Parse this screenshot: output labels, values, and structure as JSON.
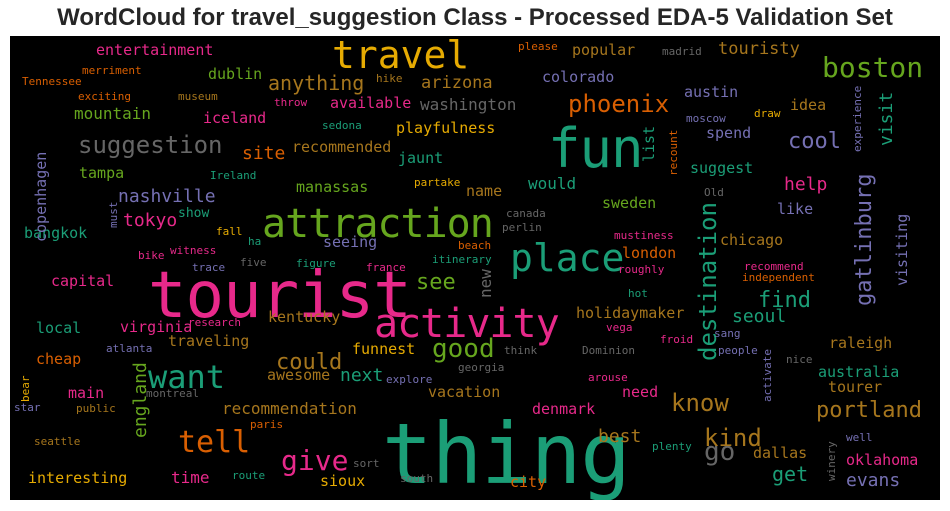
{
  "chart_data": {
    "type": "wordcloud",
    "title": "WordCloud for travel_suggestion Class - Processed EDA-5 Validation Set",
    "background": "#000000",
    "colormap": [
      "#1b9e77",
      "#d95f02",
      "#7570b3",
      "#e7298a",
      "#66a61e",
      "#e6ab02",
      "#a6761d",
      "#666666"
    ],
    "words": [
      {
        "text": "thing",
        "color": "#1b9e77",
        "weight": 1.0
      },
      {
        "text": "tourist",
        "color": "#e7298a",
        "weight": 0.92
      },
      {
        "text": "attraction",
        "color": "#66a61e",
        "weight": 0.72
      },
      {
        "text": "fun",
        "color": "#1b9e77",
        "weight": 0.78
      },
      {
        "text": "activity",
        "color": "#e7298a",
        "weight": 0.7
      },
      {
        "text": "place",
        "color": "#1b9e77",
        "weight": 0.6
      },
      {
        "text": "travel",
        "color": "#e6ab02",
        "weight": 0.6
      },
      {
        "text": "want",
        "color": "#1b9e77",
        "weight": 0.5
      },
      {
        "text": "tell",
        "color": "#d95f02",
        "weight": 0.45
      },
      {
        "text": "suggestion",
        "color": "#666666",
        "weight": 0.42
      },
      {
        "text": "boston",
        "color": "#66a61e",
        "weight": 0.42
      },
      {
        "text": "destination",
        "color": "#1b9e77",
        "weight": 0.4
      },
      {
        "text": "gatlinburg",
        "color": "#7570b3",
        "weight": 0.38
      },
      {
        "text": "give",
        "color": "#e7298a",
        "weight": 0.38
      },
      {
        "text": "good",
        "color": "#66a61e",
        "weight": 0.35
      },
      {
        "text": "phoenix",
        "color": "#d95f02",
        "weight": 0.34
      },
      {
        "text": "know",
        "color": "#a6761d",
        "weight": 0.33
      },
      {
        "text": "go",
        "color": "#666666",
        "weight": 0.33
      },
      {
        "text": "portland",
        "color": "#a6761d",
        "weight": 0.31
      },
      {
        "text": "see",
        "color": "#66a61e",
        "weight": 0.3
      },
      {
        "text": "find",
        "color": "#1b9e77",
        "weight": 0.29
      },
      {
        "text": "cool",
        "color": "#7570b3",
        "weight": 0.29
      },
      {
        "text": "kind",
        "color": "#a6761d",
        "weight": 0.28
      },
      {
        "text": "could",
        "color": "#a6761d",
        "weight": 0.28
      },
      {
        "text": "england",
        "color": "#66a61e",
        "weight": 0.27
      },
      {
        "text": "nashville",
        "color": "#7570b3",
        "weight": 0.27
      },
      {
        "text": "anything",
        "color": "#a6761d",
        "weight": 0.27
      },
      {
        "text": "get",
        "color": "#1b9e77",
        "weight": 0.26
      },
      {
        "text": "evans",
        "color": "#7570b3",
        "weight": 0.26
      },
      {
        "text": "tokyo",
        "color": "#e7298a",
        "weight": 0.25
      },
      {
        "text": "touristy",
        "color": "#a6761d",
        "weight": 0.25
      },
      {
        "text": "visit",
        "color": "#1b9e77",
        "weight": 0.24
      },
      {
        "text": "best",
        "color": "#a6761d",
        "weight": 0.24
      },
      {
        "text": "help",
        "color": "#e7298a",
        "weight": 0.24
      },
      {
        "text": "next",
        "color": "#1b9e77",
        "weight": 0.23
      },
      {
        "text": "seoul",
        "color": "#1b9e77",
        "weight": 0.23
      },
      {
        "text": "site",
        "color": "#d95f02",
        "weight": 0.23
      },
      {
        "text": "time",
        "color": "#e7298a",
        "weight": 0.22
      },
      {
        "text": "arizona",
        "color": "#a6761d",
        "weight": 0.22
      },
      {
        "text": "mountain",
        "color": "#66a61e",
        "weight": 0.22
      },
      {
        "text": "washington",
        "color": "#666666",
        "weight": 0.22
      },
      {
        "text": "new",
        "color": "#666666",
        "weight": 0.21
      },
      {
        "text": "recommendation",
        "color": "#a6761d",
        "weight": 0.21
      },
      {
        "text": "awesome",
        "color": "#a6761d",
        "weight": 0.21
      },
      {
        "text": "virginia",
        "color": "#e7298a",
        "weight": 0.21
      },
      {
        "text": "visiting",
        "color": "#7570b3",
        "weight": 0.21
      },
      {
        "text": "dallas",
        "color": "#a6761d",
        "weight": 0.2
      },
      {
        "text": "like",
        "color": "#7570b3",
        "weight": 0.2
      },
      {
        "text": "would",
        "color": "#1b9e77",
        "weight": 0.2
      },
      {
        "text": "sweden",
        "color": "#66a61e",
        "weight": 0.19
      },
      {
        "text": "austin",
        "color": "#7570b3",
        "weight": 0.19
      },
      {
        "text": "suggest",
        "color": "#1b9e77",
        "weight": 0.19
      },
      {
        "text": "main",
        "color": "#e7298a",
        "weight": 0.19
      },
      {
        "text": "raleigh",
        "color": "#a6761d",
        "weight": 0.19
      },
      {
        "text": "oklahoma",
        "color": "#e7298a",
        "weight": 0.19
      },
      {
        "text": "australia",
        "color": "#1b9e77",
        "weight": 0.19
      },
      {
        "text": "tourer",
        "color": "#a6761d",
        "weight": 0.19
      },
      {
        "text": "local",
        "color": "#1b9e77",
        "weight": 0.19
      },
      {
        "text": "london",
        "color": "#d95f02",
        "weight": 0.18
      },
      {
        "text": "chicago",
        "color": "#a6761d",
        "weight": 0.18
      },
      {
        "text": "dublin",
        "color": "#66a61e",
        "weight": 0.18
      },
      {
        "text": "iceland",
        "color": "#e7298a",
        "weight": 0.18
      },
      {
        "text": "colorado",
        "color": "#7570b3",
        "weight": 0.18
      },
      {
        "text": "popular",
        "color": "#a6761d",
        "weight": 0.18
      },
      {
        "text": "jaunt",
        "color": "#1b9e77",
        "weight": 0.18
      },
      {
        "text": "available",
        "color": "#e7298a",
        "weight": 0.18
      },
      {
        "text": "manassas",
        "color": "#66a61e",
        "weight": 0.18
      },
      {
        "text": "spend",
        "color": "#7570b3",
        "weight": 0.18
      },
      {
        "text": "idea",
        "color": "#a6761d",
        "weight": 0.18
      },
      {
        "text": "entertainment",
        "color": "#e7298a",
        "weight": 0.17
      },
      {
        "text": "playfulness",
        "color": "#e6ab02",
        "weight": 0.17
      },
      {
        "text": "recommended",
        "color": "#a6761d",
        "weight": 0.17
      },
      {
        "text": "seeing",
        "color": "#7570b3",
        "weight": 0.17
      },
      {
        "text": "funnest",
        "color": "#e6ab02",
        "weight": 0.17
      },
      {
        "text": "need",
        "color": "#e7298a",
        "weight": 0.17
      },
      {
        "text": "vacation",
        "color": "#a6761d",
        "weight": 0.17
      },
      {
        "text": "denmark",
        "color": "#e7298a",
        "weight": 0.17
      },
      {
        "text": "traveling",
        "color": "#a6761d",
        "weight": 0.17
      },
      {
        "text": "holidaymaker",
        "color": "#a6761d",
        "weight": 0.17
      },
      {
        "text": "interesting",
        "color": "#e6ab02",
        "weight": 0.17
      },
      {
        "text": "city",
        "color": "#d95f02",
        "weight": 0.17
      },
      {
        "text": "sioux",
        "color": "#e6ab02",
        "weight": 0.17
      },
      {
        "text": "kentucky",
        "color": "#a6761d",
        "weight": 0.16
      },
      {
        "text": "capital",
        "color": "#e7298a",
        "weight": 0.16
      },
      {
        "text": "cheap",
        "color": "#d95f02",
        "weight": 0.16
      },
      {
        "text": "tampa",
        "color": "#66a61e",
        "weight": 0.16
      },
      {
        "text": "bangkok",
        "color": "#1b9e77",
        "weight": 0.16
      },
      {
        "text": "name",
        "color": "#a6761d",
        "weight": 0.16
      },
      {
        "text": "list",
        "color": "#1b9e77",
        "weight": 0.16
      },
      {
        "text": "copenhagen",
        "color": "#7570b3",
        "weight": 0.16
      },
      {
        "text": "show",
        "color": "#1b9e77",
        "weight": 0.13
      },
      {
        "text": "Tennessee",
        "color": "#d95f02",
        "weight": 0.11
      },
      {
        "text": "merriment",
        "color": "#d95f02",
        "weight": 0.11
      },
      {
        "text": "exciting",
        "color": "#d95f02",
        "weight": 0.11
      },
      {
        "text": "museum",
        "color": "#a6761d",
        "weight": 0.11
      },
      {
        "text": "hike",
        "color": "#a6761d",
        "weight": 0.11
      },
      {
        "text": "throw",
        "color": "#e7298a",
        "weight": 0.11
      },
      {
        "text": "sedona",
        "color": "#1b9e77",
        "weight": 0.1
      },
      {
        "text": "please",
        "color": "#d95f02",
        "weight": 0.1
      },
      {
        "text": "madrid",
        "color": "#666666",
        "weight": 0.1
      },
      {
        "text": "moscow",
        "color": "#7570b3",
        "weight": 0.1
      },
      {
        "text": "draw",
        "color": "#e6ab02",
        "weight": 0.1
      },
      {
        "text": "experience",
        "color": "#7570b3",
        "weight": 0.1
      },
      {
        "text": "recount",
        "color": "#d95f02",
        "weight": 0.1
      },
      {
        "text": "Ireland",
        "color": "#1b9e77",
        "weight": 0.1
      },
      {
        "text": "partake",
        "color": "#e6ab02",
        "weight": 0.1
      },
      {
        "text": "Old",
        "color": "#666666",
        "weight": 0.1
      },
      {
        "text": "must",
        "color": "#7570b3",
        "weight": 0.1
      },
      {
        "text": "canada",
        "color": "#666666",
        "weight": 0.1
      },
      {
        "text": "perlin",
        "color": "#666666",
        "weight": 0.1
      },
      {
        "text": "fall",
        "color": "#e6ab02",
        "weight": 0.11
      },
      {
        "text": "ha",
        "color": "#1b9e77",
        "weight": 0.1
      },
      {
        "text": "mustiness",
        "color": "#e7298a",
        "weight": 0.1
      },
      {
        "text": "bike",
        "color": "#e7298a",
        "weight": 0.11
      },
      {
        "text": "witness",
        "color": "#e7298a",
        "weight": 0.1
      },
      {
        "text": "trace",
        "color": "#7570b3",
        "weight": 0.1
      },
      {
        "text": "five",
        "color": "#666666",
        "weight": 0.1
      },
      {
        "text": "figure",
        "color": "#1b9e77",
        "weight": 0.1
      },
      {
        "text": "france",
        "color": "#e7298a",
        "weight": 0.1
      },
      {
        "text": "itinerary",
        "color": "#1b9e77",
        "weight": 0.1
      },
      {
        "text": "beach",
        "color": "#d95f02",
        "weight": 0.1
      },
      {
        "text": "roughly",
        "color": "#e7298a",
        "weight": 0.1
      },
      {
        "text": "hot",
        "color": "#1b9e77",
        "weight": 0.1
      },
      {
        "text": "recommend",
        "color": "#e7298a",
        "weight": 0.1
      },
      {
        "text": "independent",
        "color": "#d95f02",
        "weight": 0.1
      },
      {
        "text": "research",
        "color": "#e7298a",
        "weight": 0.1
      },
      {
        "text": "vega",
        "color": "#e7298a",
        "weight": 0.1
      },
      {
        "text": "sang",
        "color": "#7570b3",
        "weight": 0.1
      },
      {
        "text": "froid",
        "color": "#e7298a",
        "weight": 0.1
      },
      {
        "text": "people",
        "color": "#7570b3",
        "weight": 0.1
      },
      {
        "text": "activate",
        "color": "#7570b3",
        "weight": 0.1
      },
      {
        "text": "atlanta",
        "color": "#7570b3",
        "weight": 0.1
      },
      {
        "text": "think",
        "color": "#666666",
        "weight": 0.1
      },
      {
        "text": "Dominion",
        "color": "#666666",
        "weight": 0.1
      },
      {
        "text": "nice",
        "color": "#666666",
        "weight": 0.1
      },
      {
        "text": "explore",
        "color": "#7570b3",
        "weight": 0.1
      },
      {
        "text": "georgia",
        "color": "#666666",
        "weight": 0.1
      },
      {
        "text": "arouse",
        "color": "#e7298a",
        "weight": 0.1
      },
      {
        "text": "bear",
        "color": "#e6ab02",
        "weight": 0.1
      },
      {
        "text": "star",
        "color": "#7570b3",
        "weight": 0.1
      },
      {
        "text": "public",
        "color": "#a6761d",
        "weight": 0.1
      },
      {
        "text": "montreal",
        "color": "#666666",
        "weight": 0.1
      },
      {
        "text": "paris",
        "color": "#d95f02",
        "weight": 0.1
      },
      {
        "text": "seattle",
        "color": "#a6761d",
        "weight": 0.1
      },
      {
        "text": "sort",
        "color": "#666666",
        "weight": 0.1
      },
      {
        "text": "plenty",
        "color": "#1b9e77",
        "weight": 0.1
      },
      {
        "text": "winery",
        "color": "#666666",
        "weight": 0.1
      },
      {
        "text": "well",
        "color": "#7570b3",
        "weight": 0.1
      },
      {
        "text": "route",
        "color": "#1b9e77",
        "weight": 0.1
      },
      {
        "text": "south",
        "color": "#666666",
        "weight": 0.1
      }
    ]
  }
}
